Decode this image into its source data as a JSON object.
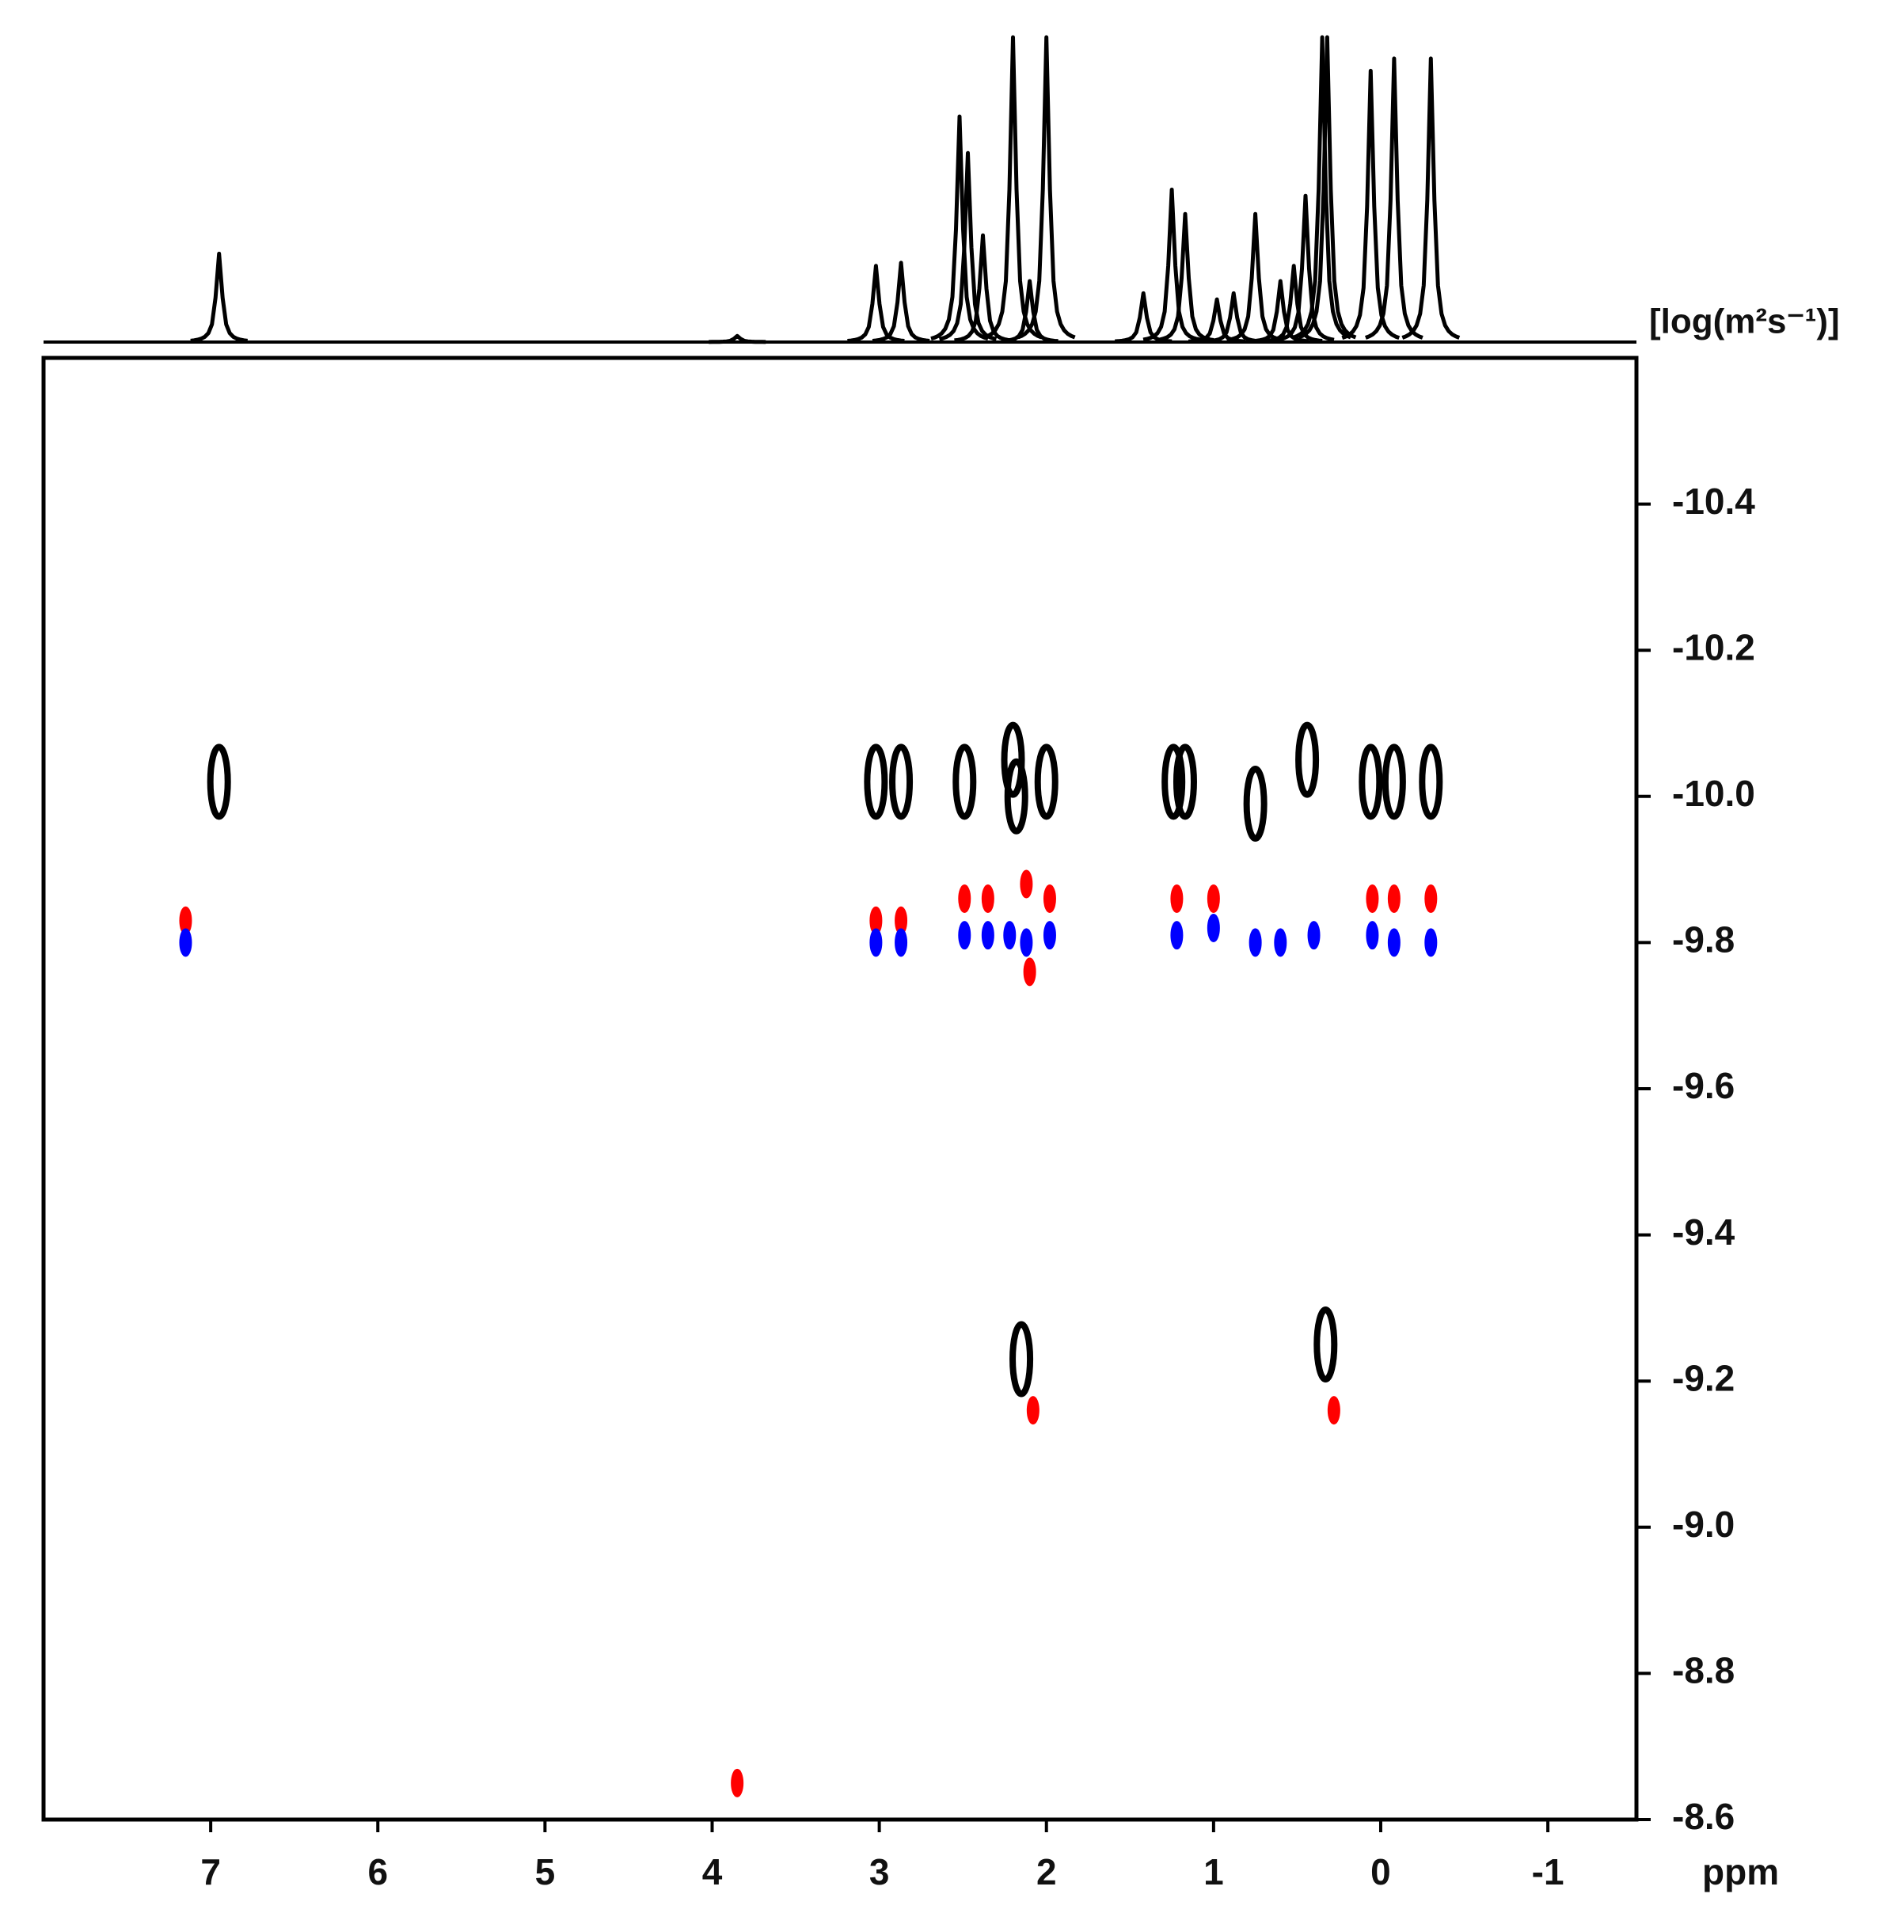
{
  "chart_data": {
    "type": "dosy",
    "xlabel": "ppm",
    "ylabel": "[log(m²s⁻¹)]",
    "xlim": [
      8,
      -1.53
    ],
    "xticks": [
      7,
      6,
      5,
      4,
      3,
      2,
      1,
      0,
      -1
    ],
    "ylim": [
      -8.6,
      -10.6
    ],
    "yticks": [
      -10.4,
      -10.2,
      {
        "value": -10,
        "label": "-10.0"
      },
      -9.8,
      -9.6,
      -9.4,
      -9.2,
      {
        "value": -9,
        "label": "-9.0"
      },
      -8.8,
      -8.6
    ],
    "spectrum": {
      "color": "#000000",
      "x": [
        6.95,
        3.85,
        3.02,
        2.87,
        2.52,
        2.47,
        2.38,
        2.2,
        2.1,
        2.0,
        1.42,
        1.25,
        1.17,
        0.98,
        0.88,
        0.75,
        0.6,
        0.52,
        0.45,
        0.35,
        0.32,
        0.06,
        -0.08,
        -0.3
      ],
      "values": [
        0.29,
        0.02,
        0.25,
        0.26,
        0.74,
        0.62,
        0.35,
        1.0,
        0.2,
        1.0,
        0.16,
        0.5,
        0.42,
        0.14,
        0.16,
        0.42,
        0.2,
        0.25,
        0.48,
        1.0,
        1.0,
        0.89,
        0.93,
        0.93
      ]
    },
    "series": [
      {
        "color": "#000000",
        "x": [
          6.95,
          3.02,
          2.87,
          2.49,
          2.2,
          2.18,
          2.0,
          1.24,
          1.17,
          0.75,
          0.44,
          0.06,
          -0.08,
          -0.3,
          2.15,
          0.33
        ],
        "values": [
          -10.02,
          -10.02,
          -10.02,
          -10.02,
          -10.05,
          -10.0,
          -10.02,
          -10.02,
          -10.02,
          -9.99,
          -10.05,
          -10.02,
          -10.02,
          -10.02,
          -9.23,
          -9.25
        ]
      },
      {
        "color": "#ff0000",
        "x": [
          7.15,
          3.02,
          2.87,
          2.49,
          2.35,
          2.12,
          2.1,
          1.98,
          1.22,
          1.0,
          0.05,
          -0.08,
          -0.3,
          2.08,
          0.28,
          3.85
        ],
        "values": [
          -9.83,
          -9.83,
          -9.83,
          -9.86,
          -9.86,
          -9.88,
          -9.76,
          -9.86,
          -9.86,
          -9.86,
          -9.86,
          -9.86,
          -9.86,
          -9.16,
          -9.16,
          -8.65
        ]
      },
      {
        "color": "#0000ff",
        "x": [
          7.15,
          3.02,
          2.87,
          2.49,
          2.35,
          2.22,
          2.12,
          1.98,
          1.22,
          1.0,
          0.75,
          0.6,
          0.4,
          0.05,
          -0.08,
          -0.3
        ],
        "values": [
          -9.8,
          -9.8,
          -9.8,
          -9.81,
          -9.81,
          -9.81,
          -9.8,
          -9.81,
          -9.81,
          -9.82,
          -9.8,
          -9.8,
          -9.81,
          -9.81,
          -9.8,
          -9.8
        ]
      }
    ]
  }
}
